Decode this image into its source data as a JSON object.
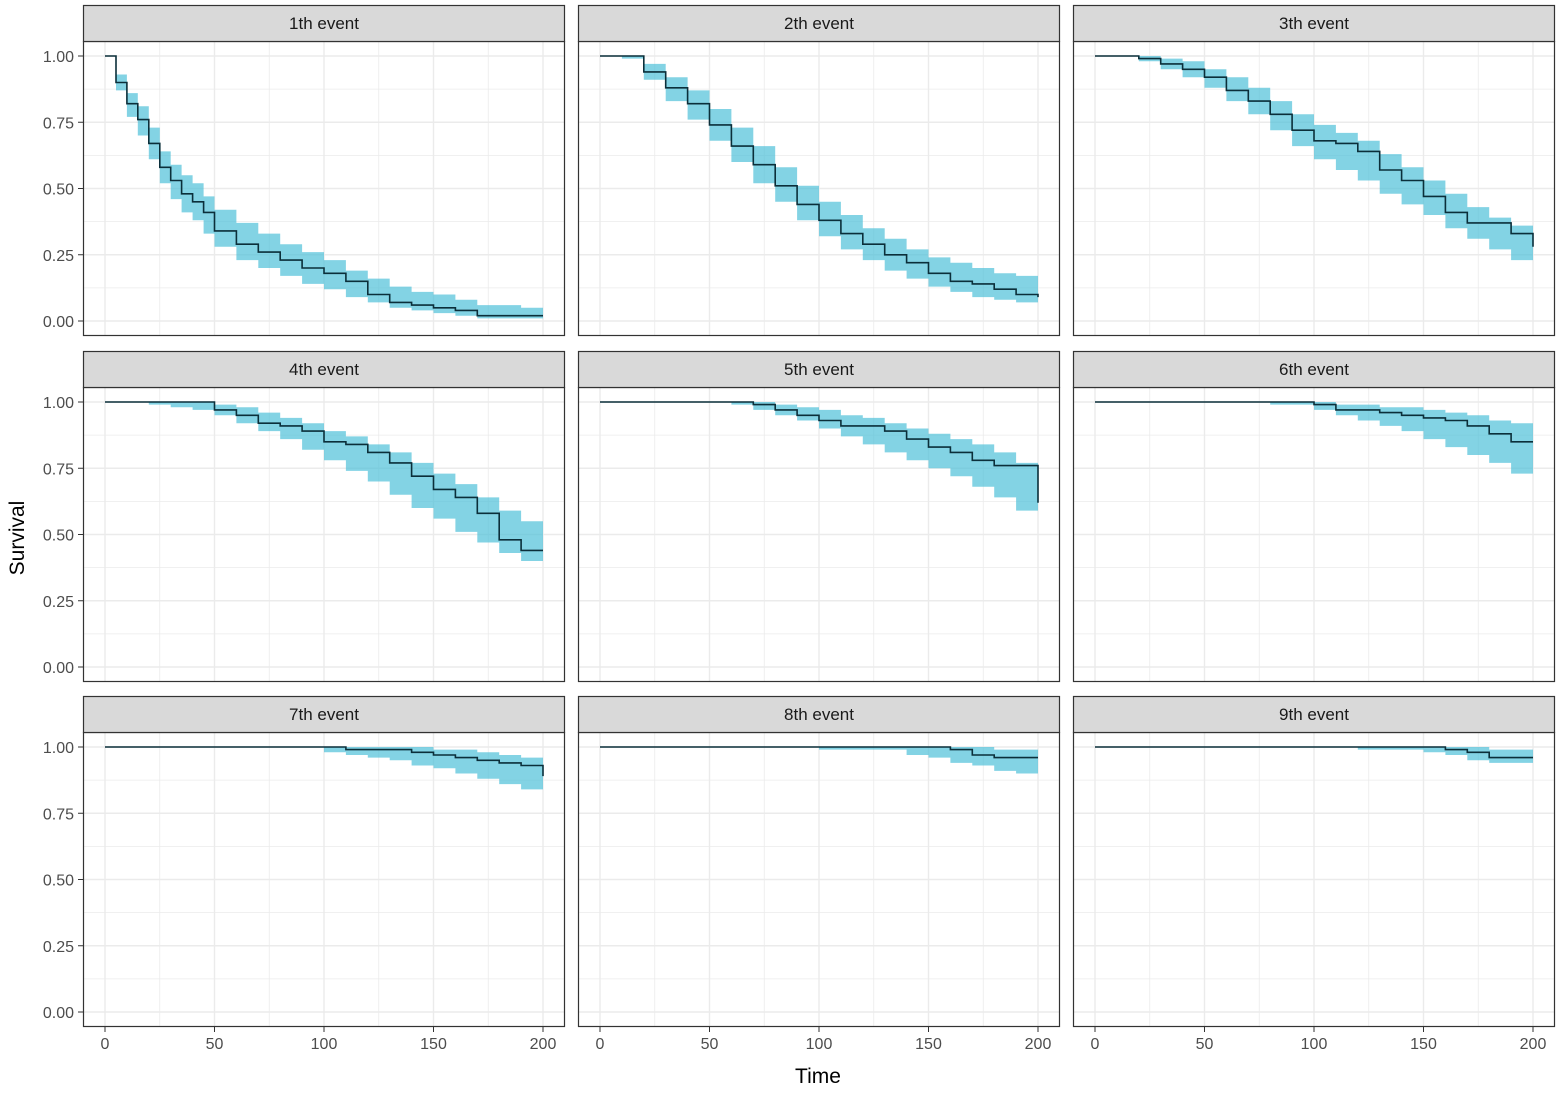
{
  "chart_data": {
    "type": "line",
    "xlabel": "Time",
    "ylabel": "Survival",
    "xlim": [
      0,
      200
    ],
    "ylim": [
      0,
      1
    ],
    "x_ticks": [
      0,
      50,
      100,
      150,
      200
    ],
    "y_ticks": [
      0,
      0.25,
      0.5,
      0.75,
      1.0
    ],
    "y_tick_labels": [
      "0.00",
      "0.25",
      "0.50",
      "0.75",
      "1.00"
    ],
    "grid": true,
    "colors": {
      "ribbon": "#4fc1d9",
      "line": "#0b2f3a",
      "strip": "#d9d9d9",
      "grid": "#ebebeb"
    },
    "panels": [
      {
        "title": "1th event",
        "time": [
          0,
          5,
          10,
          15,
          20,
          25,
          30,
          35,
          40,
          45,
          50,
          60,
          70,
          80,
          90,
          100,
          110,
          120,
          130,
          140,
          150,
          160,
          170,
          180,
          190,
          200
        ],
        "survival": [
          1.0,
          0.9,
          0.82,
          0.76,
          0.67,
          0.58,
          0.53,
          0.48,
          0.45,
          0.41,
          0.34,
          0.29,
          0.26,
          0.23,
          0.2,
          0.18,
          0.15,
          0.1,
          0.07,
          0.06,
          0.05,
          0.04,
          0.02,
          0.02,
          0.02,
          0.02
        ],
        "lower": [
          1.0,
          0.87,
          0.77,
          0.7,
          0.61,
          0.52,
          0.46,
          0.41,
          0.38,
          0.33,
          0.28,
          0.23,
          0.2,
          0.17,
          0.14,
          0.12,
          0.09,
          0.07,
          0.05,
          0.04,
          0.03,
          0.02,
          0.01,
          0.01,
          0.01,
          0.01
        ],
        "upper": [
          1.0,
          0.93,
          0.86,
          0.81,
          0.73,
          0.64,
          0.59,
          0.55,
          0.52,
          0.47,
          0.42,
          0.37,
          0.33,
          0.29,
          0.26,
          0.23,
          0.19,
          0.16,
          0.13,
          0.11,
          0.1,
          0.08,
          0.06,
          0.06,
          0.05,
          0.05
        ]
      },
      {
        "title": "2th event",
        "time": [
          0,
          10,
          20,
          30,
          40,
          50,
          60,
          70,
          80,
          90,
          100,
          110,
          120,
          130,
          140,
          150,
          160,
          170,
          180,
          190,
          200
        ],
        "survival": [
          1.0,
          1.0,
          0.94,
          0.88,
          0.82,
          0.74,
          0.66,
          0.59,
          0.51,
          0.44,
          0.38,
          0.33,
          0.29,
          0.25,
          0.22,
          0.18,
          0.15,
          0.14,
          0.12,
          0.1,
          0.09
        ],
        "lower": [
          1.0,
          0.99,
          0.91,
          0.83,
          0.76,
          0.68,
          0.6,
          0.52,
          0.45,
          0.38,
          0.32,
          0.27,
          0.23,
          0.19,
          0.16,
          0.13,
          0.11,
          0.09,
          0.08,
          0.07,
          0.06
        ],
        "upper": [
          1.0,
          1.0,
          0.97,
          0.92,
          0.87,
          0.8,
          0.73,
          0.66,
          0.58,
          0.51,
          0.45,
          0.4,
          0.35,
          0.31,
          0.27,
          0.24,
          0.22,
          0.2,
          0.18,
          0.17,
          0.17
        ]
      },
      {
        "title": "3th event",
        "time": [
          0,
          10,
          20,
          30,
          40,
          50,
          60,
          70,
          80,
          90,
          100,
          110,
          120,
          130,
          140,
          150,
          160,
          170,
          180,
          190,
          200
        ],
        "survival": [
          1.0,
          1.0,
          0.99,
          0.97,
          0.95,
          0.92,
          0.87,
          0.83,
          0.78,
          0.72,
          0.68,
          0.67,
          0.64,
          0.57,
          0.53,
          0.47,
          0.41,
          0.37,
          0.37,
          0.33,
          0.28
        ],
        "lower": [
          1.0,
          1.0,
          0.98,
          0.95,
          0.92,
          0.88,
          0.83,
          0.78,
          0.72,
          0.66,
          0.61,
          0.57,
          0.53,
          0.48,
          0.44,
          0.4,
          0.35,
          0.31,
          0.27,
          0.23,
          0.2
        ],
        "upper": [
          1.0,
          1.0,
          1.0,
          0.99,
          0.98,
          0.95,
          0.92,
          0.88,
          0.83,
          0.78,
          0.74,
          0.71,
          0.68,
          0.63,
          0.58,
          0.53,
          0.48,
          0.43,
          0.39,
          0.36,
          0.32
        ]
      },
      {
        "title": "4th event",
        "time": [
          0,
          10,
          20,
          30,
          40,
          50,
          60,
          70,
          80,
          90,
          100,
          110,
          120,
          130,
          140,
          150,
          160,
          170,
          180,
          190,
          200
        ],
        "survival": [
          1.0,
          1.0,
          1.0,
          1.0,
          1.0,
          0.97,
          0.95,
          0.92,
          0.91,
          0.89,
          0.85,
          0.84,
          0.81,
          0.77,
          0.72,
          0.67,
          0.64,
          0.58,
          0.48,
          0.44,
          0.44
        ],
        "lower": [
          1.0,
          1.0,
          0.99,
          0.98,
          0.97,
          0.95,
          0.92,
          0.89,
          0.86,
          0.82,
          0.78,
          0.74,
          0.7,
          0.65,
          0.6,
          0.56,
          0.51,
          0.47,
          0.43,
          0.4,
          0.37
        ],
        "upper": [
          1.0,
          1.0,
          1.0,
          1.0,
          1.0,
          0.99,
          0.98,
          0.96,
          0.94,
          0.92,
          0.89,
          0.87,
          0.84,
          0.81,
          0.77,
          0.73,
          0.69,
          0.64,
          0.59,
          0.55,
          0.53
        ]
      },
      {
        "title": "5th event",
        "time": [
          0,
          20,
          40,
          60,
          70,
          80,
          90,
          100,
          110,
          120,
          130,
          140,
          150,
          160,
          170,
          180,
          190,
          200
        ],
        "survival": [
          1.0,
          1.0,
          1.0,
          1.0,
          0.99,
          0.97,
          0.95,
          0.93,
          0.91,
          0.91,
          0.89,
          0.86,
          0.83,
          0.81,
          0.78,
          0.76,
          0.76,
          0.62
        ],
        "lower": [
          1.0,
          1.0,
          1.0,
          0.99,
          0.97,
          0.95,
          0.93,
          0.9,
          0.87,
          0.84,
          0.81,
          0.78,
          0.75,
          0.72,
          0.68,
          0.64,
          0.59,
          0.55
        ],
        "upper": [
          1.0,
          1.0,
          1.0,
          1.0,
          1.0,
          0.99,
          0.98,
          0.97,
          0.95,
          0.94,
          0.92,
          0.9,
          0.88,
          0.86,
          0.84,
          0.81,
          0.77,
          0.69
        ]
      },
      {
        "title": "6th event",
        "time": [
          0,
          40,
          80,
          100,
          110,
          120,
          130,
          140,
          150,
          160,
          170,
          180,
          190,
          200
        ],
        "survival": [
          1.0,
          1.0,
          1.0,
          0.99,
          0.97,
          0.97,
          0.96,
          0.95,
          0.94,
          0.93,
          0.91,
          0.88,
          0.85,
          0.85
        ],
        "lower": [
          1.0,
          1.0,
          0.99,
          0.97,
          0.95,
          0.93,
          0.91,
          0.89,
          0.86,
          0.83,
          0.8,
          0.77,
          0.73,
          0.69
        ],
        "upper": [
          1.0,
          1.0,
          1.0,
          1.0,
          0.99,
          0.99,
          0.98,
          0.98,
          0.97,
          0.96,
          0.95,
          0.93,
          0.92,
          0.9
        ]
      },
      {
        "title": "7th event",
        "time": [
          0,
          50,
          100,
          110,
          120,
          130,
          140,
          150,
          160,
          170,
          180,
          190,
          200
        ],
        "survival": [
          1.0,
          1.0,
          1.0,
          0.99,
          0.99,
          0.99,
          0.98,
          0.97,
          0.96,
          0.95,
          0.94,
          0.93,
          0.89
        ],
        "lower": [
          1.0,
          1.0,
          0.98,
          0.97,
          0.96,
          0.95,
          0.93,
          0.92,
          0.9,
          0.88,
          0.86,
          0.84,
          0.8
        ],
        "upper": [
          1.0,
          1.0,
          1.0,
          1.0,
          1.0,
          1.0,
          1.0,
          0.99,
          0.99,
          0.98,
          0.97,
          0.96,
          0.93
        ]
      },
      {
        "title": "8th event",
        "time": [
          0,
          70,
          100,
          140,
          150,
          160,
          170,
          180,
          190,
          200
        ],
        "survival": [
          1.0,
          1.0,
          1.0,
          1.0,
          1.0,
          0.99,
          0.97,
          0.96,
          0.96,
          0.96
        ],
        "lower": [
          1.0,
          1.0,
          0.99,
          0.97,
          0.96,
          0.94,
          0.93,
          0.91,
          0.9,
          0.88
        ],
        "upper": [
          1.0,
          1.0,
          1.0,
          1.0,
          1.0,
          1.0,
          1.0,
          0.99,
          0.99,
          0.99
        ]
      },
      {
        "title": "9th event",
        "time": [
          0,
          90,
          120,
          150,
          160,
          170,
          180,
          190,
          200
        ],
        "survival": [
          1.0,
          1.0,
          1.0,
          1.0,
          0.99,
          0.98,
          0.96,
          0.96,
          0.96
        ],
        "lower": [
          1.0,
          1.0,
          0.99,
          0.98,
          0.97,
          0.95,
          0.94,
          0.94,
          0.93
        ],
        "upper": [
          1.0,
          1.0,
          1.0,
          1.0,
          1.0,
          1.0,
          0.99,
          0.99,
          0.99
        ]
      }
    ]
  }
}
